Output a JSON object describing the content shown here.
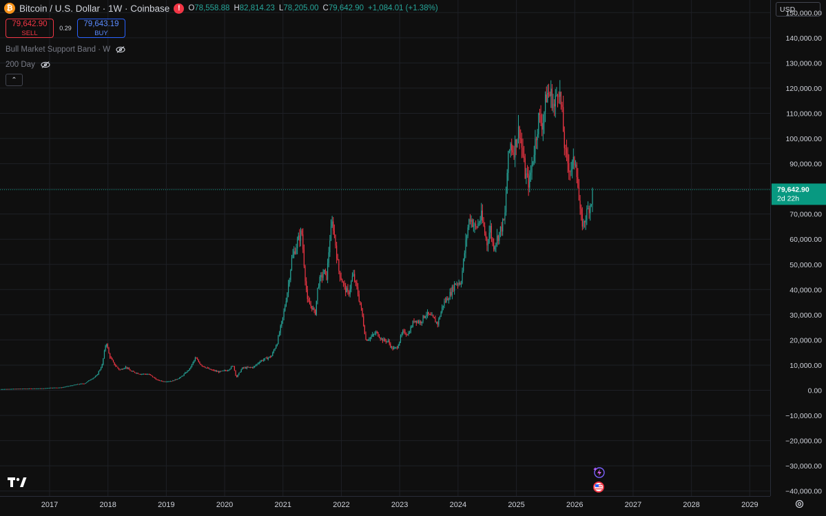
{
  "header": {
    "coin_symbol": "₿",
    "title": "Bitcoin / U.S. Dollar · 1W · Coinbase",
    "alert_symbol": "!",
    "ohlc": {
      "o_label": "O",
      "o": "78,558.88",
      "h_label": "H",
      "h": "82,814.23",
      "l_label": "L",
      "l": "78,205.00",
      "c_label": "C",
      "c": "79,642.90",
      "change": "+1,084.01 (+1.38%)"
    }
  },
  "trade": {
    "sell_price": "79,642.90",
    "sell_label": "SELL",
    "spread": "0.29",
    "buy_price": "79,643.19",
    "buy_label": "BUY"
  },
  "indicators": [
    {
      "name": "Bull Market Support Band · W"
    },
    {
      "name": "200 Day"
    }
  ],
  "collapse_symbol": "⌃",
  "currency": "USD",
  "colors": {
    "up": "#26a69a",
    "down": "#f23645",
    "grid": "#1e2026",
    "axis_text": "#d1d4dc",
    "current_price_bg": "#089981"
  },
  "chart_data": {
    "type": "candlestick",
    "title": "Bitcoin / U.S. Dollar · 1W · Coinbase",
    "xlabel": "",
    "ylabel": "",
    "y_ticks": [
      "150,000.00",
      "140,000.00",
      "130,000.00",
      "120,000.00",
      "110,000.00",
      "100,000.00",
      "90,000.00",
      "80,000.00",
      "70,000.00",
      "60,000.00",
      "50,000.00",
      "40,000.00",
      "30,000.00",
      "20,000.00",
      "10,000.00",
      "0.00",
      "−10,000.00",
      "−20,000.00",
      "−30,000.00",
      "−40,000.00"
    ],
    "y_tick_values": [
      150000,
      140000,
      130000,
      120000,
      110000,
      100000,
      90000,
      80000,
      70000,
      60000,
      50000,
      40000,
      30000,
      20000,
      10000,
      0,
      -10000,
      -20000,
      -30000,
      -40000
    ],
    "x_ticks": [
      "2017",
      "2018",
      "2019",
      "2020",
      "2021",
      "2022",
      "2023",
      "2024",
      "2025",
      "2026",
      "2027",
      "2028",
      "2029"
    ],
    "x_tick_values": [
      2017,
      2018,
      2019,
      2020,
      2021,
      2022,
      2023,
      2024,
      2025,
      2026,
      2027,
      2028,
      2029
    ],
    "ylim": [
      -42000,
      155000
    ],
    "xlim": [
      2016.15,
      2029.35
    ],
    "grid": true,
    "current_price": "79,642.90",
    "current_price_value": 79642.9,
    "countdown": "2d 22h",
    "price_path": [
      [
        2016.15,
        450
      ],
      [
        2016.5,
        650
      ],
      [
        2016.9,
        750
      ],
      [
        2017.0,
        1000
      ],
      [
        2017.2,
        1100
      ],
      [
        2017.35,
        1800
      ],
      [
        2017.5,
        2500
      ],
      [
        2017.6,
        2700
      ],
      [
        2017.7,
        4300
      ],
      [
        2017.8,
        5600
      ],
      [
        2017.9,
        10000
      ],
      [
        2017.97,
        19500
      ],
      [
        2018.02,
        14000
      ],
      [
        2018.1,
        10500
      ],
      [
        2018.2,
        8000
      ],
      [
        2018.3,
        9300
      ],
      [
        2018.4,
        7500
      ],
      [
        2018.55,
        6500
      ],
      [
        2018.7,
        6400
      ],
      [
        2018.85,
        4000
      ],
      [
        2018.95,
        3500
      ],
      [
        2019.1,
        3700
      ],
      [
        2019.25,
        5200
      ],
      [
        2019.4,
        8500
      ],
      [
        2019.5,
        12800
      ],
      [
        2019.6,
        10000
      ],
      [
        2019.75,
        8200
      ],
      [
        2019.9,
        7300
      ],
      [
        2020.05,
        8000
      ],
      [
        2020.15,
        9800
      ],
      [
        2020.2,
        5000
      ],
      [
        2020.3,
        8800
      ],
      [
        2020.5,
        9200
      ],
      [
        2020.6,
        11500
      ],
      [
        2020.8,
        13500
      ],
      [
        2020.9,
        19000
      ],
      [
        2021.0,
        29000
      ],
      [
        2021.08,
        40000
      ],
      [
        2021.15,
        52000
      ],
      [
        2021.25,
        59000
      ],
      [
        2021.32,
        63000
      ],
      [
        2021.38,
        45000
      ],
      [
        2021.42,
        35000
      ],
      [
        2021.5,
        33000
      ],
      [
        2021.55,
        30000
      ],
      [
        2021.6,
        42000
      ],
      [
        2021.7,
        47000
      ],
      [
        2021.75,
        45000
      ],
      [
        2021.8,
        60000
      ],
      [
        2021.85,
        67000
      ],
      [
        2021.9,
        58000
      ],
      [
        2021.95,
        48000
      ],
      [
        2022.05,
        41000
      ],
      [
        2022.12,
        38000
      ],
      [
        2022.2,
        46000
      ],
      [
        2022.28,
        39000
      ],
      [
        2022.35,
        31000
      ],
      [
        2022.42,
        20000
      ],
      [
        2022.5,
        21000
      ],
      [
        2022.6,
        23000
      ],
      [
        2022.7,
        20000
      ],
      [
        2022.8,
        19500
      ],
      [
        2022.87,
        16500
      ],
      [
        2022.95,
        16800
      ],
      [
        2023.05,
        23000
      ],
      [
        2023.15,
        22500
      ],
      [
        2023.25,
        28000
      ],
      [
        2023.35,
        27000
      ],
      [
        2023.45,
        30500
      ],
      [
        2023.55,
        29000
      ],
      [
        2023.65,
        26500
      ],
      [
        2023.75,
        34500
      ],
      [
        2023.85,
        37500
      ],
      [
        2023.95,
        42500
      ],
      [
        2024.05,
        43000
      ],
      [
        2024.15,
        62000
      ],
      [
        2024.2,
        69000
      ],
      [
        2024.3,
        64000
      ],
      [
        2024.4,
        69000
      ],
      [
        2024.5,
        58000
      ],
      [
        2024.55,
        65000
      ],
      [
        2024.6,
        57000
      ],
      [
        2024.7,
        62000
      ],
      [
        2024.8,
        68000
      ],
      [
        2024.85,
        90000
      ],
      [
        2024.9,
        98000
      ],
      [
        2024.95,
        95000
      ],
      [
        2025.0,
        100000
      ],
      [
        2025.05,
        104000
      ],
      [
        2025.15,
        86000
      ],
      [
        2025.22,
        82000
      ],
      [
        2025.3,
        95000
      ],
      [
        2025.38,
        108000
      ],
      [
        2025.45,
        106000
      ],
      [
        2025.52,
        118000
      ],
      [
        2025.6,
        117000
      ],
      [
        2025.65,
        112000
      ],
      [
        2025.72,
        122000
      ],
      [
        2025.78,
        110000
      ],
      [
        2025.84,
        93000
      ],
      [
        2025.92,
        88000
      ],
      [
        2025.98,
        90000
      ],
      [
        2026.02,
        92000
      ],
      [
        2026.07,
        76000
      ],
      [
        2026.1,
        68000
      ],
      [
        2026.15,
        66000
      ],
      [
        2026.2,
        70000
      ],
      [
        2026.28,
        75000
      ],
      [
        2026.32,
        79642.9
      ]
    ]
  },
  "tv_logo": "tradingview-logo",
  "bottom_right_icon": "settings-icon"
}
